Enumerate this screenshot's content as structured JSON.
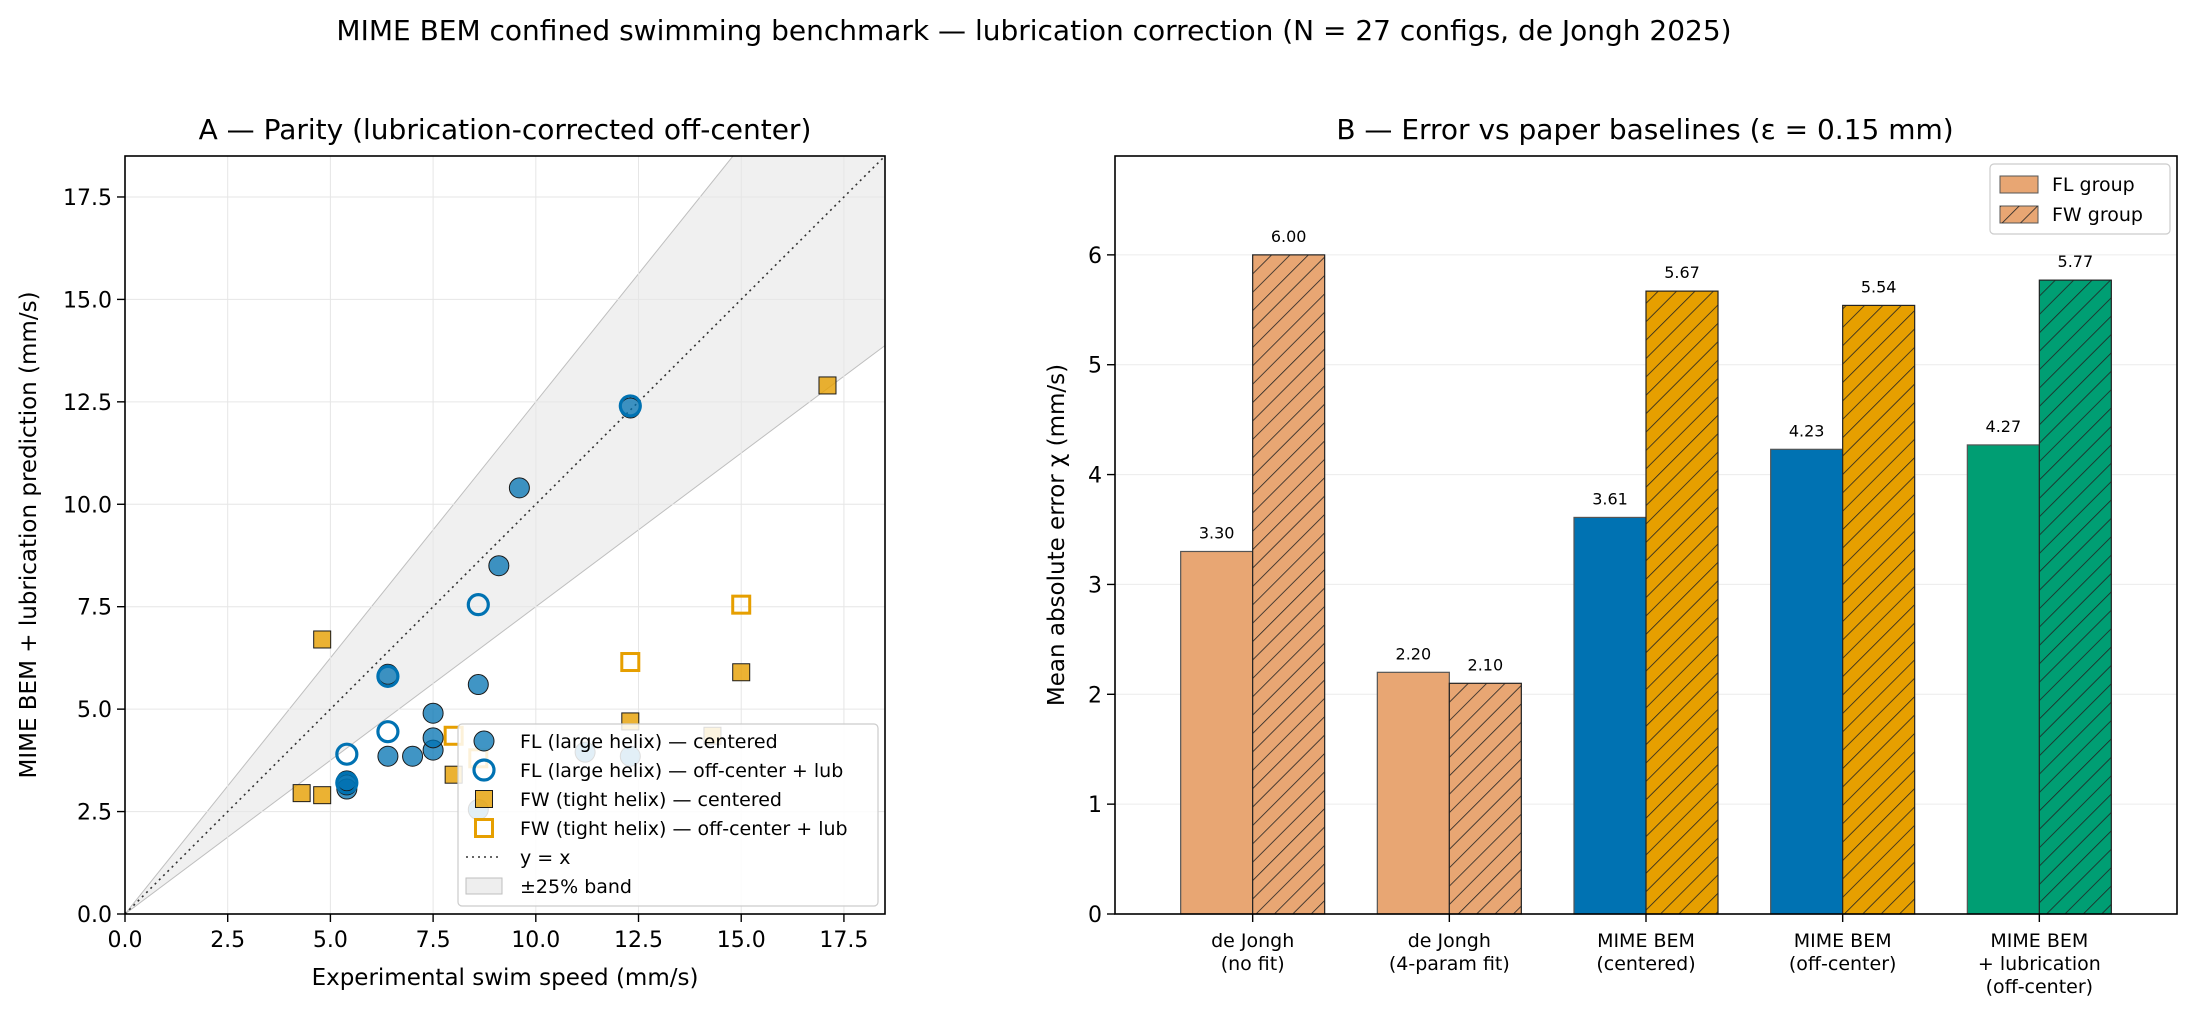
{
  "suptitle": "MIME BEM confined swimming benchmark — lubrication correction (N = 27 configs, de Jongh 2025)",
  "chart_data": [
    {
      "type": "scatter",
      "title": "A — Parity (lubrication-corrected off-center)",
      "xlabel": "Experimental swim speed (mm/s)",
      "ylabel": "MIME BEM + lubrication prediction (mm/s)",
      "xlim": [
        0,
        18.5
      ],
      "ylim": [
        0,
        18.5
      ],
      "xticks": [
        "0.0",
        "2.5",
        "5.0",
        "7.5",
        "10.0",
        "12.5",
        "15.0",
        "17.5"
      ],
      "yticks": [
        "0.0",
        "2.5",
        "5.0",
        "7.5",
        "10.0",
        "12.5",
        "15.0",
        "17.5"
      ],
      "grid": true,
      "legend_position": "lower-right",
      "reference_line": {
        "label": "y = x",
        "slope": 1
      },
      "band": {
        "label": "±25% band",
        "lower": 0.75,
        "upper": 1.25
      },
      "series": [
        {
          "name": "FL (large helix) — centered",
          "marker": "filled-circle",
          "color": "#0072B2",
          "points": [
            [
              5.4,
              3.05
            ],
            [
              5.4,
              3.15
            ],
            [
              5.4,
              3.25
            ],
            [
              6.4,
              3.85
            ],
            [
              7.0,
              3.85
            ],
            [
              7.5,
              4.0
            ],
            [
              7.5,
              4.3
            ],
            [
              7.5,
              4.9
            ],
            [
              6.4,
              5.85
            ],
            [
              8.6,
              5.6
            ],
            [
              9.1,
              8.5
            ],
            [
              9.6,
              10.4
            ],
            [
              12.3,
              12.35
            ],
            [
              12.3,
              3.85
            ],
            [
              11.2,
              3.95
            ],
            [
              8.6,
              2.55
            ]
          ]
        },
        {
          "name": "FL (large helix) — off-center + lub",
          "marker": "hollow-circle",
          "color": "#0072B2",
          "points": [
            [
              5.4,
              3.2
            ],
            [
              5.4,
              3.9
            ],
            [
              6.4,
              4.45
            ],
            [
              6.4,
              5.8
            ],
            [
              8.6,
              7.55
            ],
            [
              12.3,
              12.4
            ]
          ]
        },
        {
          "name": "FW (tight helix) — centered",
          "marker": "filled-square",
          "color": "#E69F00",
          "points": [
            [
              4.3,
              2.95
            ],
            [
              4.8,
              2.9
            ],
            [
              4.8,
              6.7
            ],
            [
              8.0,
              3.4
            ],
            [
              12.3,
              4.7
            ],
            [
              15.0,
              5.9
            ],
            [
              17.1,
              12.9
            ],
            [
              14.3,
              4.35
            ]
          ]
        },
        {
          "name": "FW (tight helix) — off-center + lub",
          "marker": "hollow-square",
          "color": "#E69F00",
          "points": [
            [
              8.0,
              4.35
            ],
            [
              12.3,
              6.15
            ],
            [
              15.0,
              7.55
            ],
            [
              8.6,
              3.8
            ]
          ]
        }
      ]
    },
    {
      "type": "bar",
      "title": "B — Error vs paper baselines (ε = 0.15 mm)",
      "ylabel": "Mean absolute error χ (mm/s)",
      "ylim": [
        0,
        6.9
      ],
      "yticks": [
        "0",
        "1",
        "2",
        "3",
        "4",
        "5",
        "6"
      ],
      "grid": true,
      "legend_position": "upper-right",
      "categories": [
        [
          "de Jongh",
          "(no fit)"
        ],
        [
          "de Jongh",
          "(4-param fit)"
        ],
        [
          "MIME BEM",
          "(centered)"
        ],
        [
          "MIME BEM",
          "(off-center)"
        ],
        [
          "MIME BEM",
          "+ lubrication",
          "(off-center)"
        ]
      ],
      "colors": [
        "#E8A673",
        "#E8A673",
        "#0072B2",
        "#0072B2",
        "#009E73"
      ],
      "fw_colors": [
        "#E8A673",
        "#E8A673",
        "#E69F00",
        "#E69F00",
        "#009E73"
      ],
      "series": [
        {
          "name": "FL group",
          "values": [
            3.3,
            2.2,
            3.61,
            4.23,
            4.27
          ],
          "labels": [
            "3.30",
            "2.20",
            "3.61",
            "4.23",
            "4.27"
          ]
        },
        {
          "name": "FW group",
          "values": [
            6.0,
            2.1,
            5.67,
            5.54,
            5.77
          ],
          "labels": [
            "6.00",
            "2.10",
            "5.67",
            "5.54",
            "5.77"
          ]
        }
      ],
      "legend_swatch_color": "#E8A673"
    }
  ]
}
